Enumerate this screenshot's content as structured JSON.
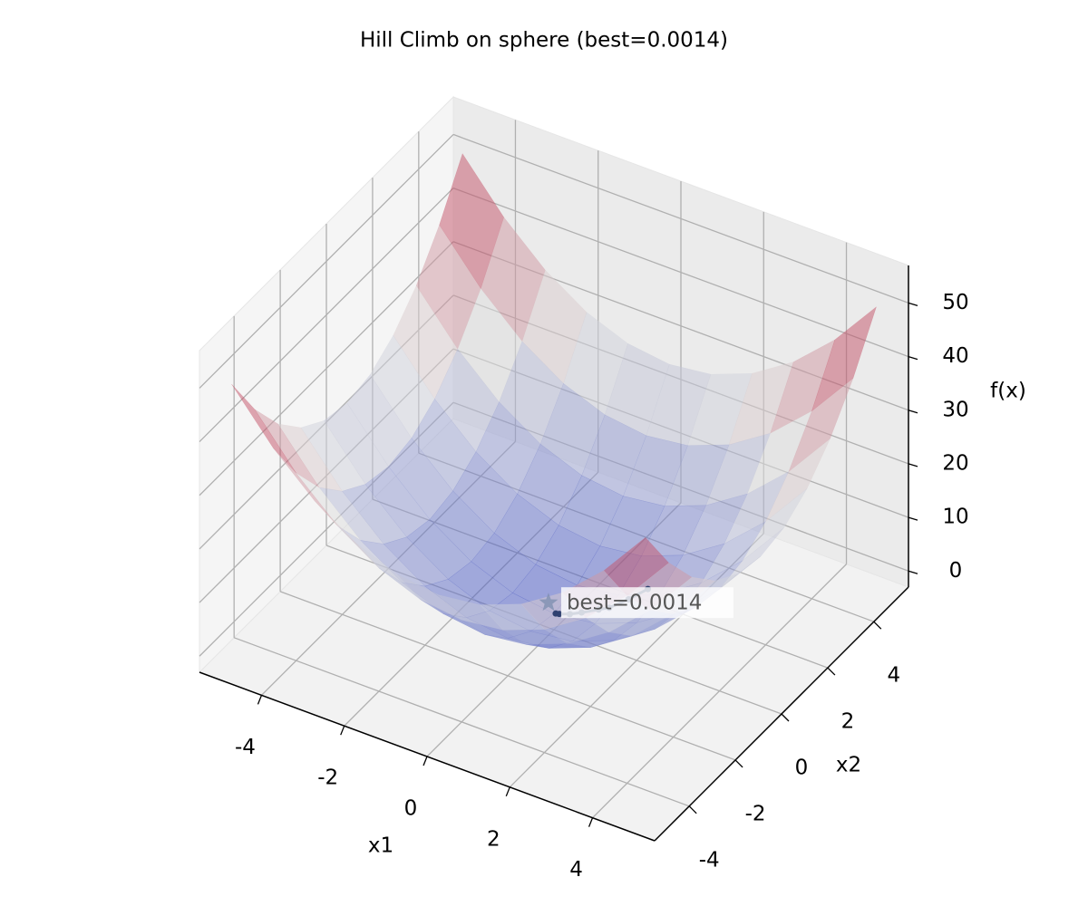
{
  "chart_data": {
    "type": "surface",
    "title": "Hill Climb on sphere (best=0.0014)",
    "xlabel": "x1",
    "ylabel": "x2",
    "zlabel": "f(x)",
    "xlim": [
      -5.5,
      5.5
    ],
    "ylim": [
      -5.5,
      5.5
    ],
    "zlim": [
      -3,
      57
    ],
    "xticks": [
      -4,
      -2,
      0,
      2,
      4
    ],
    "yticks": [
      -4,
      -2,
      0,
      2,
      4
    ],
    "zticks": [
      0,
      10,
      20,
      30,
      40,
      50
    ],
    "grid": true,
    "colormap": [
      "#3b4cc0",
      "#dddddd",
      "#b40426"
    ],
    "surface_alpha": 0.5,
    "x": [
      -5,
      -4,
      -3,
      -2,
      -1,
      0,
      1,
      2,
      3,
      4,
      5
    ],
    "y": [
      -5,
      -4,
      -3,
      -2,
      -1,
      0,
      1,
      2,
      3,
      4,
      5
    ],
    "z": [
      [
        50,
        41,
        34,
        29,
        26,
        25,
        26,
        29,
        34,
        41,
        50
      ],
      [
        41,
        32,
        25,
        20,
        17,
        16,
        17,
        20,
        25,
        32,
        41
      ],
      [
        34,
        25,
        18,
        13,
        10,
        9,
        10,
        13,
        18,
        25,
        34
      ],
      [
        29,
        20,
        13,
        8,
        5,
        4,
        5,
        8,
        13,
        20,
        29
      ],
      [
        26,
        17,
        10,
        5,
        2,
        1,
        2,
        5,
        10,
        17,
        26
      ],
      [
        25,
        16,
        9,
        4,
        1,
        0,
        1,
        4,
        9,
        16,
        25
      ],
      [
        26,
        17,
        10,
        5,
        2,
        1,
        2,
        5,
        10,
        17,
        26
      ],
      [
        29,
        20,
        13,
        8,
        5,
        4,
        5,
        8,
        13,
        20,
        29
      ],
      [
        34,
        25,
        18,
        13,
        10,
        9,
        10,
        13,
        18,
        25,
        34
      ],
      [
        41,
        32,
        25,
        20,
        17,
        16,
        17,
        20,
        25,
        32,
        41
      ],
      [
        50,
        41,
        34,
        29,
        26,
        25,
        26,
        29,
        34,
        41,
        50
      ]
    ],
    "path": {
      "color": "#2f4170",
      "x": [
        1.6,
        1.3,
        1.0,
        0.8,
        0.5,
        0.3,
        0.1,
        0.03
      ],
      "y": [
        1.2,
        0.9,
        0.6,
        0.5,
        0.3,
        0.15,
        0.05,
        0.0224
      ],
      "z": [
        4.0,
        2.5,
        1.36,
        0.89,
        0.34,
        0.1125,
        0.0125,
        0.0014
      ]
    },
    "best": {
      "x": 0.03,
      "y": 0.0224,
      "z": 0.0014,
      "label": "best=0.0014",
      "color": "#8090b0"
    }
  }
}
